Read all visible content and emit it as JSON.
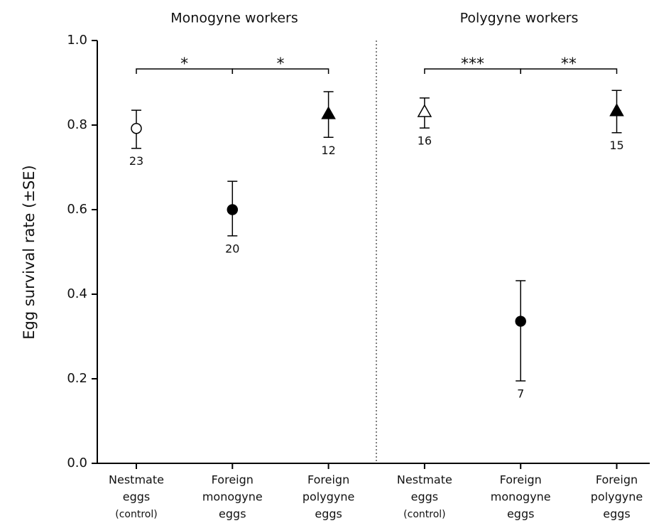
{
  "chart_data": {
    "type": "scatter",
    "panel_titles": [
      "Monogyne workers",
      "Polygyne workers"
    ],
    "ylabel": "Egg survival rate (±SE)",
    "ylim": [
      0,
      1
    ],
    "yticks": [
      {
        "value": 0,
        "label": "0.0"
      },
      0.2,
      0.4,
      0.6,
      0.8,
      {
        "value": 1,
        "label": "1.0"
      }
    ],
    "categories": [
      [
        "Nestmate",
        "eggs",
        "(control)"
      ],
      [
        "Foreign",
        "monogyne",
        "eggs"
      ],
      [
        "Foreign",
        "polygyne",
        "eggs"
      ],
      [
        "Nestmate",
        "eggs",
        "(control)"
      ],
      [
        "Foreign",
        "monogyne",
        "eggs"
      ],
      [
        "Foreign",
        "polygyne",
        "eggs"
      ]
    ],
    "series": [
      {
        "values": [
          0.792,
          0.6,
          0.827,
          0.832,
          0.336,
          0.834
        ],
        "error_minus": [
          0.047,
          0.062,
          0.056,
          0.039,
          0.141,
          0.052
        ],
        "error_plus": [
          0.043,
          0.067,
          0.052,
          0.032,
          0.096,
          0.048
        ],
        "markers": [
          "open-circle",
          "filled-circle",
          "filled-triangle",
          "open-triangle",
          "filled-circle",
          "filled-triangle"
        ],
        "n": [
          23,
          20,
          12,
          16,
          7,
          15
        ],
        "color": "#000000"
      }
    ],
    "brackets": [
      {
        "from": 0,
        "to": 1,
        "label": "*"
      },
      {
        "from": 1,
        "to": 2,
        "label": "*"
      },
      {
        "from": 3,
        "to": 4,
        "label": "***"
      },
      {
        "from": 4,
        "to": 5,
        "label": "**"
      }
    ]
  }
}
